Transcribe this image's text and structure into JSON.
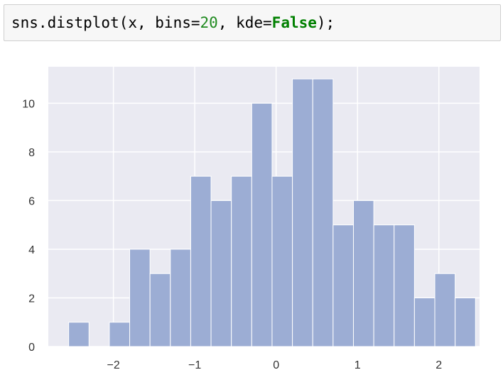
{
  "code_cell": {
    "fn": "sns.distplot(x, bins=",
    "bins": "20",
    "mid": ", kde=",
    "kde": "False",
    "end": ");"
  },
  "colors": {
    "plot_background": "#eaeaf2",
    "grid": "#ffffff",
    "bar_fill": "#9cadd4",
    "bar_edge": "#ffffff",
    "code_background": "#f7f7f7",
    "code_number": "#1f8a1f",
    "code_keyword": "#008000"
  },
  "chart_data": {
    "type": "bar",
    "title": "",
    "xlabel": "",
    "ylabel": "",
    "grid": true,
    "legend": "none",
    "xlim": [
      -2.8,
      2.5
    ],
    "ylim": [
      0,
      11.5
    ],
    "xticks": [
      -2,
      -1,
      0,
      1,
      2
    ],
    "xtick_labels": [
      "−2",
      "−1",
      "0",
      "1",
      "2"
    ],
    "yticks": [
      0,
      2,
      4,
      6,
      8,
      10
    ],
    "ytick_labels": [
      "0",
      "2",
      "4",
      "6",
      "8",
      "10"
    ],
    "bin_width": 0.25,
    "bins": [
      {
        "x0": -2.55,
        "count": 1
      },
      {
        "x0": -2.3,
        "count": 0
      },
      {
        "x0": -2.05,
        "count": 1
      },
      {
        "x0": -1.8,
        "count": 4
      },
      {
        "x0": -1.55,
        "count": 3
      },
      {
        "x0": -1.3,
        "count": 4
      },
      {
        "x0": -1.05,
        "count": 7
      },
      {
        "x0": -0.8,
        "count": 6
      },
      {
        "x0": -0.55,
        "count": 7
      },
      {
        "x0": -0.3,
        "count": 10
      },
      {
        "x0": -0.05,
        "count": 7
      },
      {
        "x0": 0.2,
        "count": 11
      },
      {
        "x0": 0.45,
        "count": 11
      },
      {
        "x0": 0.7,
        "count": 5
      },
      {
        "x0": 0.95,
        "count": 6
      },
      {
        "x0": 1.2,
        "count": 5
      },
      {
        "x0": 1.45,
        "count": 5
      },
      {
        "x0": 1.7,
        "count": 2
      },
      {
        "x0": 1.95,
        "count": 3
      },
      {
        "x0": 2.2,
        "count": 2
      }
    ]
  }
}
